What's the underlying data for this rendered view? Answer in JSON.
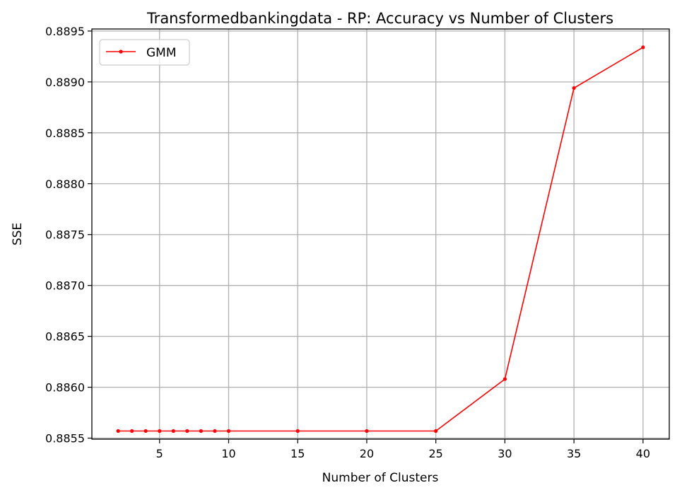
{
  "chart_data": {
    "type": "line",
    "title": "Transformedbankingdata - RP: Accuracy vs Number of Clusters",
    "xlabel": "Number of Clusters",
    "ylabel": "SSE",
    "xlim": [
      0.1,
      41.9
    ],
    "ylim": [
      0.88549,
      0.88952
    ],
    "xticks": [
      5,
      10,
      15,
      20,
      25,
      30,
      35,
      40
    ],
    "xtick_labels": [
      "5",
      "10",
      "15",
      "20",
      "25",
      "30",
      "35",
      "40"
    ],
    "yticks": [
      0.8855,
      0.886,
      0.8865,
      0.887,
      0.8875,
      0.888,
      0.8885,
      0.889,
      0.8895
    ],
    "ytick_labels": [
      "0.8855",
      "0.8860",
      "0.8865",
      "0.8870",
      "0.8875",
      "0.8880",
      "0.8885",
      "0.8890",
      "0.8895"
    ],
    "grid": true,
    "legend_position": "top-left",
    "series": [
      {
        "name": "GMM",
        "color": "#ff0000",
        "marker": "circle",
        "x": [
          2,
          3,
          4,
          5,
          6,
          7,
          8,
          9,
          10,
          15,
          20,
          25,
          30,
          35,
          40
        ],
        "y": [
          0.88557,
          0.88557,
          0.88557,
          0.88557,
          0.88557,
          0.88557,
          0.88557,
          0.88557,
          0.88557,
          0.88557,
          0.88557,
          0.88557,
          0.88608,
          0.88894,
          0.88934
        ]
      }
    ]
  }
}
